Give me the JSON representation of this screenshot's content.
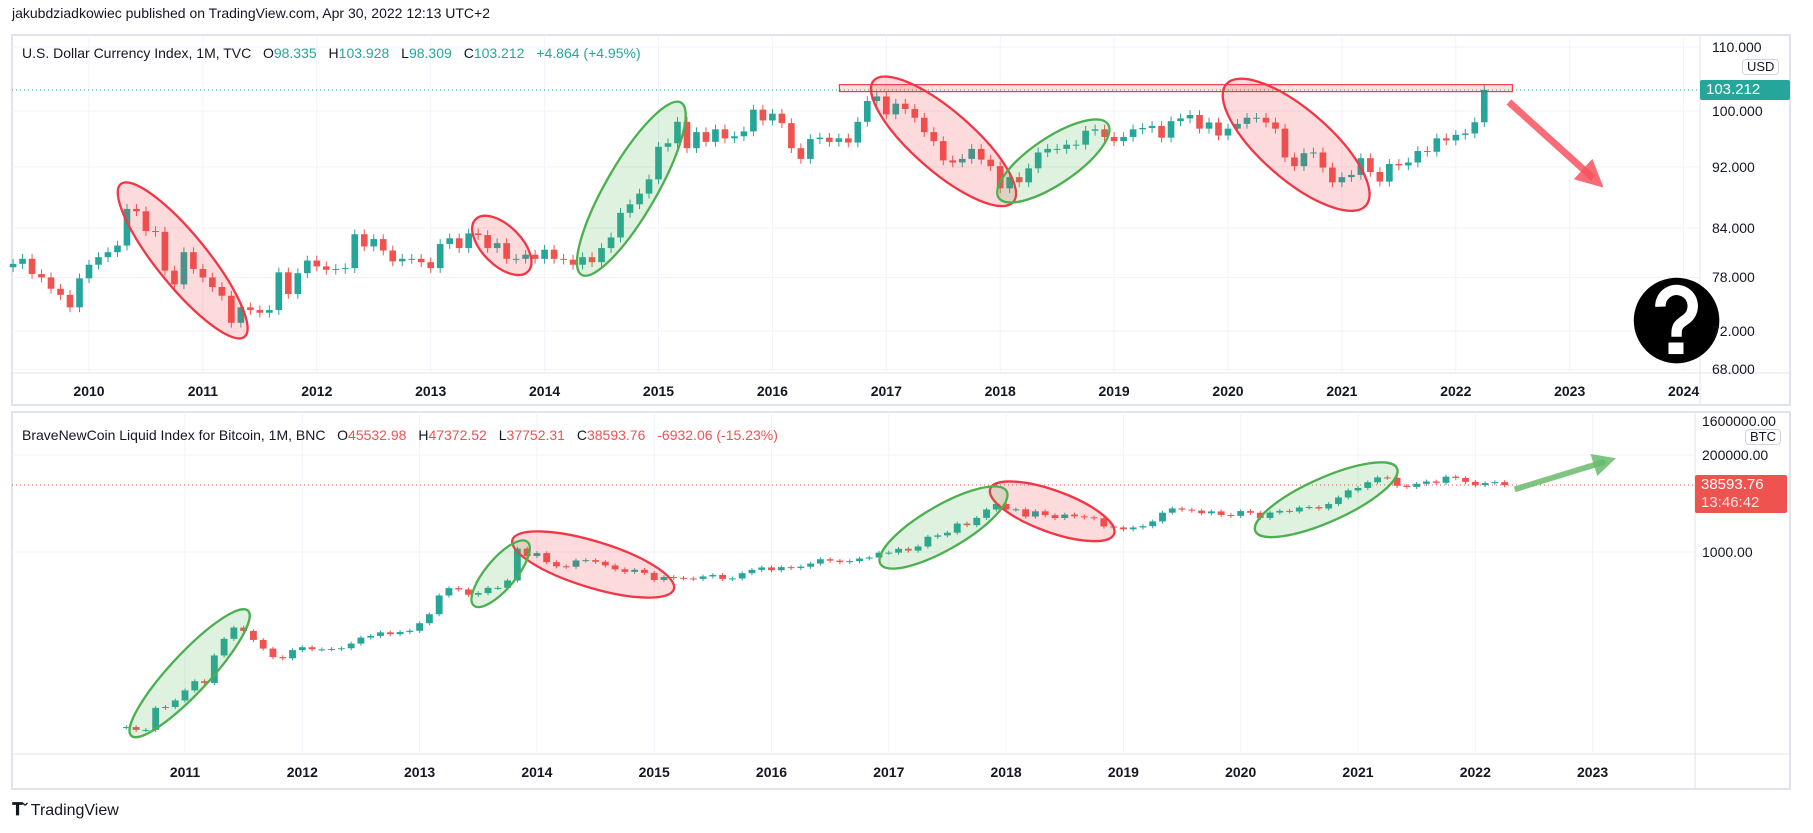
{
  "header": {
    "published": "jakubdziadkowiec published on TradingView.com, Apr 30, 2022 12:13 UTC+2"
  },
  "colors": {
    "up": "#26a69a",
    "down": "#ef5350",
    "ellipse_red": "#f23645",
    "ellipse_green": "#4caf50"
  },
  "footer": {
    "brand": "TradingView"
  },
  "chart_data": [
    {
      "type": "candlestick",
      "title": "U.S. Dollar Currency Index, 1M, TVC",
      "ohlc_labels": {
        "o": "O",
        "h": "H",
        "l": "L",
        "c": "C"
      },
      "last": {
        "open": "98.335",
        "high": "103.928",
        "low": "98.309",
        "close": "103.212",
        "change": "+4.864 (+4.95%)"
      },
      "currency": "USD",
      "price_label": "103.212",
      "scale": "log",
      "y_ticks": [
        "110.000",
        "100.000",
        "92.000",
        "84.000",
        "78.000",
        "72.000",
        "68.000"
      ],
      "y_tick_values": [
        110,
        100,
        92,
        84,
        78,
        72,
        68
      ],
      "x_ticks": [
        "2010",
        "2011",
        "2012",
        "2013",
        "2014",
        "2015",
        "2016",
        "2017",
        "2018",
        "2019",
        "2020",
        "2021",
        "2022",
        "2023",
        "2024"
      ],
      "start": "2009-05",
      "monthly_closes": [
        79.6,
        80.2,
        78.4,
        78.0,
        76.7,
        76.0,
        74.6,
        77.9,
        79.5,
        80.4,
        81.0,
        81.8,
        86.4,
        86.1,
        83.6,
        83.5,
        78.8,
        77.2,
        81.0,
        79.0,
        78.0,
        76.9,
        75.9,
        72.9,
        74.6,
        74.3,
        74.0,
        74.3,
        78.6,
        76.1,
        78.5,
        80.0,
        79.3,
        78.9,
        79.0,
        79.1,
        83.2,
        81.7,
        82.6,
        81.2,
        79.9,
        80.2,
        80.2,
        79.8,
        79.1,
        82.0,
        82.7,
        81.5,
        83.3,
        83.1,
        81.5,
        82.1,
        80.2,
        80.2,
        80.7,
        80.2,
        81.3,
        80.2,
        80.1,
        79.5,
        80.4,
        79.8,
        81.5,
        82.8,
        85.9,
        87.0,
        88.4,
        90.3,
        94.8,
        95.3,
        98.4,
        94.6,
        96.9,
        95.5,
        97.3,
        96.0,
        96.3,
        97.0,
        100.2,
        98.6,
        99.6,
        98.2,
        94.6,
        93.1,
        95.9,
        96.1,
        95.5,
        96.0,
        95.4,
        98.4,
        101.5,
        102.2,
        99.5,
        101.1,
        100.3,
        99.0,
        96.9,
        95.6,
        92.9,
        92.6,
        93.1,
        94.5,
        93.0,
        92.1,
        89.1,
        90.6,
        89.9,
        91.8,
        94.0,
        94.5,
        94.5,
        95.1,
        95.1,
        97.1,
        97.3,
        96.2,
        95.6,
        96.2,
        97.3,
        97.5,
        97.8,
        96.1,
        98.5,
        98.9,
        99.4,
        97.4,
        98.3,
        96.4,
        97.4,
        98.1,
        99.0,
        99.0,
        98.3,
        97.4,
        93.3,
        92.1,
        93.9,
        94.0,
        91.9,
        89.9,
        90.6,
        90.9,
        93.2,
        91.3,
        90.0,
        92.4,
        92.2,
        92.6,
        94.2,
        94.1,
        96.0,
        95.7,
        96.5,
        96.7,
        98.335,
        103.212
      ]
    },
    {
      "type": "candlestick",
      "title": "BraveNewCoin Liquid Index for Bitcoin, 1M, BNC",
      "ohlc_labels": {
        "o": "O",
        "h": "H",
        "l": "L",
        "c": "C"
      },
      "last": {
        "open": "45532.98",
        "high": "47372.52",
        "low": "37752.31",
        "close": "38593.76",
        "change": "-6932.06 (-15.23%)"
      },
      "currency": "BTC",
      "price_label": "38593.76",
      "countdown": "13:46:42",
      "scale": "log",
      "y_ticks": [
        "1600000.00",
        "200000.00",
        "1000.00"
      ],
      "y_tick_values": [
        1600000,
        200000,
        1000
      ],
      "x_ticks": [
        "2011",
        "2012",
        "2013",
        "2014",
        "2015",
        "2016",
        "2017",
        "2018",
        "2019",
        "2020",
        "2021",
        "2022",
        "2023"
      ],
      "start": "2010-07",
      "monthly_closes": [
        0.07,
        0.06,
        0.06,
        0.2,
        0.21,
        0.3,
        0.52,
        0.86,
        0.78,
        3.5,
        8.7,
        16.1,
        13.4,
        8.2,
        5.1,
        3.2,
        3.0,
        4.7,
        5.5,
        4.9,
        4.9,
        5.0,
        5.2,
        6.7,
        9.3,
        10.2,
        12.4,
        11.2,
        12.6,
        13.5,
        20.4,
        33.4,
        93,
        139,
        129,
        97,
        106,
        141,
        141,
        211,
        1205,
        805,
        940,
        573,
        458,
        447,
        630,
        640,
        586,
        480,
        388,
        338,
        378,
        320,
        217,
        254,
        244,
        236,
        230,
        263,
        285,
        230,
        236,
        314,
        377,
        430,
        369,
        437,
        416,
        448,
        531,
        673,
        624,
        575,
        609,
        700,
        742,
        963,
        965,
        1190,
        1080,
        1350,
        2300,
        2480,
        2870,
        4730,
        4340,
        6470,
        10200,
        13800,
        10200,
        10300,
        6930,
        9240,
        7500,
        6400,
        7730,
        7030,
        6630,
        6320,
        4040,
        3830,
        3460,
        3820,
        4100,
        5320,
        8570,
        10800,
        10100,
        9600,
        8300,
        9200,
        7570,
        7200,
        9350,
        8550,
        6430,
        8630,
        9450,
        9140,
        11350,
        11650,
        10780,
        13800,
        19700,
        28990,
        33100,
        45200,
        58800,
        57800,
        37300,
        35000,
        41500,
        47100,
        43800,
        61300,
        57000,
        46200,
        38500,
        43200,
        45532.98,
        38593.76
      ]
    }
  ]
}
